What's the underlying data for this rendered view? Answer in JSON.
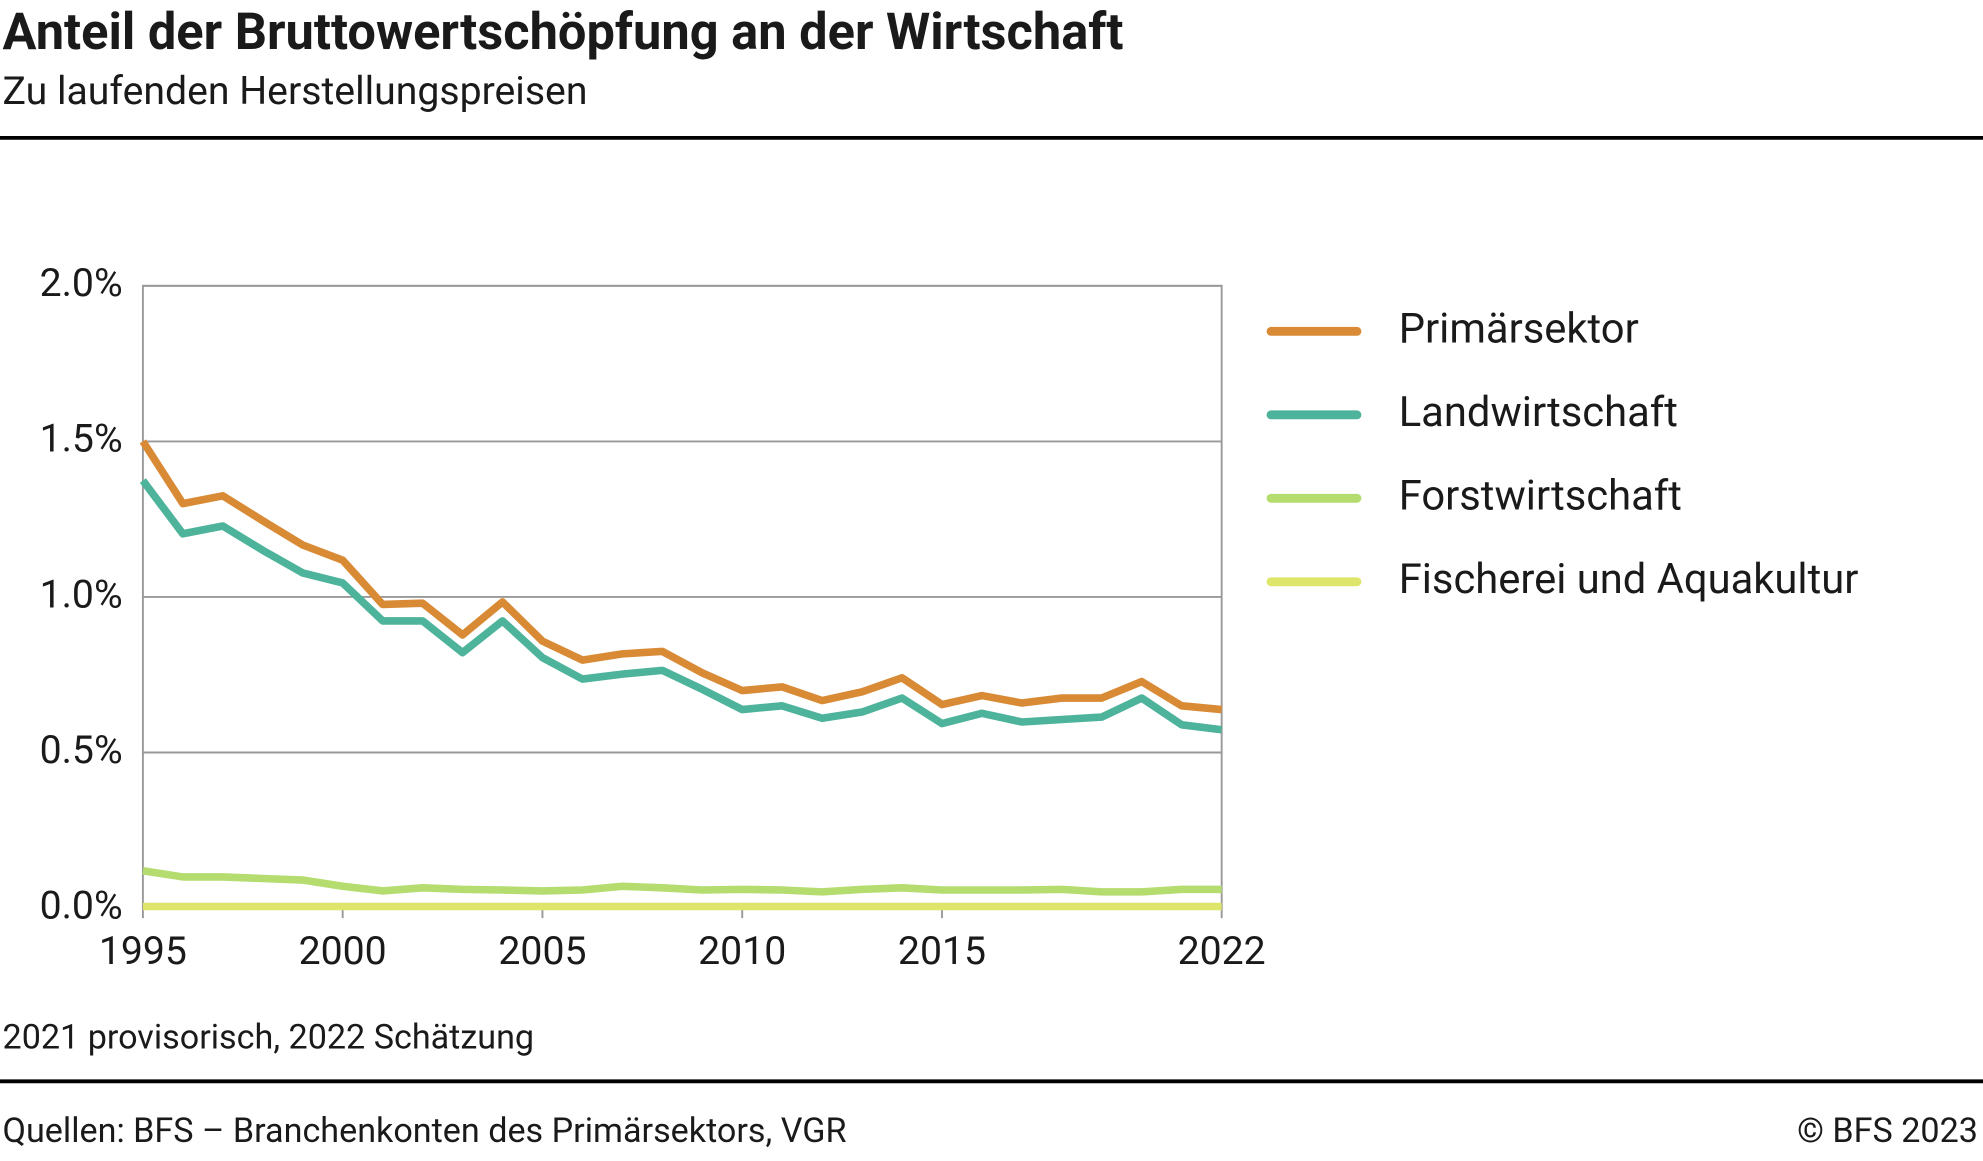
{
  "chart_data": {
    "type": "line",
    "title": "Anteil der Bruttowertschöpfung an der Wirtschaft",
    "subtitle": "Zu laufenden Herstellungspreisen",
    "note": "2021 provisorisch, 2022 Schätzung",
    "source": "Quellen: BFS – Branchenkonten des Primärsektors, VGR",
    "copyright": "© BFS 2023",
    "x": [
      1995,
      1996,
      1997,
      1998,
      1999,
      2000,
      2001,
      2002,
      2003,
      2004,
      2005,
      2006,
      2007,
      2008,
      2009,
      2010,
      2011,
      2012,
      2013,
      2014,
      2015,
      2016,
      2017,
      2018,
      2019,
      2020,
      2021,
      2022
    ],
    "series": [
      {
        "name": "Primärsektor",
        "color": "#d98a35",
        "values": [
          1.5,
          1.3,
          1.325,
          1.245,
          1.167,
          1.118,
          0.976,
          0.98,
          0.878,
          0.984,
          0.858,
          0.797,
          0.817,
          0.825,
          0.756,
          0.699,
          0.711,
          0.667,
          0.695,
          0.74,
          0.654,
          0.683,
          0.659,
          0.675,
          0.675,
          0.728,
          0.65,
          0.638
        ]
      },
      {
        "name": "Landwirtschaft",
        "color": "#4db39b",
        "values": [
          1.374,
          1.203,
          1.228,
          1.15,
          1.077,
          1.045,
          0.923,
          0.923,
          0.821,
          0.923,
          0.805,
          0.736,
          0.752,
          0.764,
          0.703,
          0.638,
          0.65,
          0.61,
          0.63,
          0.675,
          0.593,
          0.626,
          0.598,
          0.606,
          0.614,
          0.675,
          0.589,
          0.573
        ]
      },
      {
        "name": "Forstwirtschaft",
        "color": "#b4dc6e",
        "values": [
          0.12,
          0.1,
          0.1,
          0.095,
          0.09,
          0.07,
          0.055,
          0.065,
          0.06,
          0.058,
          0.055,
          0.058,
          0.07,
          0.065,
          0.058,
          0.06,
          0.058,
          0.052,
          0.06,
          0.065,
          0.058,
          0.058,
          0.058,
          0.06,
          0.052,
          0.052,
          0.06,
          0.06
        ]
      },
      {
        "name": "Fischerei und Aquakultur",
        "color": "#dde66b",
        "values": [
          0.005,
          0.005,
          0.005,
          0.005,
          0.005,
          0.005,
          0.005,
          0.005,
          0.005,
          0.005,
          0.005,
          0.005,
          0.005,
          0.005,
          0.005,
          0.005,
          0.005,
          0.005,
          0.005,
          0.005,
          0.005,
          0.005,
          0.005,
          0.005,
          0.005,
          0.005,
          0.005,
          0.005
        ]
      }
    ],
    "xlim": [
      1995,
      2022
    ],
    "xticks": [
      1995,
      2000,
      2005,
      2010,
      2015,
      2022
    ],
    "ylim": [
      0,
      2
    ],
    "yticks": [
      {
        "value": 0,
        "label": "0.0%"
      },
      {
        "value": 0.5,
        "label": "0.5%"
      },
      {
        "value": 1,
        "label": "1.0%"
      },
      {
        "value": 1.5,
        "label": "1.5%"
      },
      {
        "value": 2,
        "label": "2.0%"
      }
    ],
    "grid": true,
    "legend": "right"
  }
}
